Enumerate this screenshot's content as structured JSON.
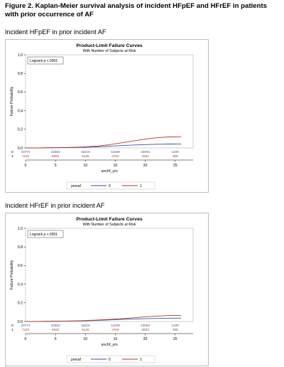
{
  "figure_title": "Figure 2. Kaplan-Meier survival analysis of incident HFpEF and HFrEF in patients with prior occurrence of AF",
  "colors": {
    "group0": "#3b4fa0",
    "group1": "#b5382b",
    "axis": "#000000",
    "frame": "#bfbfbf"
  },
  "chart_data": [
    {
      "section_title": "Incident HFpEF in prior incident AF",
      "type": "line",
      "title": "Product-Limit Failure Curves",
      "subtitle": "With Number of Subjects at Risk",
      "xlabel": "unchf_yrs",
      "ylabel": "Failure Probability",
      "xlim": [
        0,
        28
      ],
      "ylim": [
        0,
        1.0
      ],
      "xticks": [
        0,
        5,
        10,
        15,
        20,
        25
      ],
      "yticks": [
        0.0,
        0.2,
        0.4,
        0.6,
        0.8,
        1.0
      ],
      "ytick_labels": [
        "0.0",
        "0.2",
        "0.4",
        "0.6",
        "0.8",
        "1.0"
      ],
      "annotation": "Logrank p <.0001",
      "grid": false,
      "legend_title": "prevaf",
      "legend_position": "bottom",
      "series": [
        {
          "name": "0",
          "color": "#3b4fa0",
          "x": [
            0,
            2,
            4,
            6,
            8,
            10,
            12,
            14,
            16,
            18,
            20,
            22,
            24,
            26
          ],
          "y": [
            0,
            0.001,
            0.002,
            0.003,
            0.005,
            0.008,
            0.012,
            0.018,
            0.025,
            0.031,
            0.036,
            0.04,
            0.042,
            0.043
          ]
        },
        {
          "name": "1",
          "color": "#b5382b",
          "x": [
            0,
            2,
            4,
            6,
            8,
            10,
            12,
            14,
            16,
            18,
            20,
            22,
            24,
            26
          ],
          "y": [
            0,
            0.001,
            0.002,
            0.004,
            0.007,
            0.012,
            0.02,
            0.035,
            0.055,
            0.075,
            0.095,
            0.11,
            0.118,
            0.12
          ]
        }
      ],
      "at_risk": {
        "groups": [
          {
            "label": "0",
            "color": "#3b4fa0",
            "x": [
              0,
              5,
              10,
              15,
              20,
              25
            ],
            "values": [
              "23774",
              "22553",
              "16216",
              "12408",
              "10004",
              "1200"
            ]
          },
          {
            "label": "1",
            "color": "#b5382b",
            "x": [
              0,
              5,
              10,
              15,
              20,
              25
            ],
            "values": [
              "7223",
              "6932",
              "5146",
              "3700",
              "2853",
              "398"
            ]
          }
        ]
      }
    },
    {
      "section_title": "Incident HFrEF in prior incident AF",
      "type": "line",
      "title": "Product-Limit Failure Curves",
      "subtitle": "With Number of Subjects at Risk",
      "xlabel": "unchf_yrs",
      "ylabel": "Failure Probability",
      "xlim": [
        0,
        28
      ],
      "ylim": [
        0,
        1.0
      ],
      "xticks": [
        0,
        5,
        10,
        15,
        20,
        25
      ],
      "yticks": [
        0.0,
        0.2,
        0.4,
        0.6,
        0.8,
        1.0
      ],
      "ytick_labels": [
        "0.0",
        "0.2",
        "0.4",
        "0.6",
        "0.8",
        "1.0"
      ],
      "annotation": "Logrank p <.0001",
      "grid": false,
      "legend_title": "prevaf",
      "legend_position": "bottom",
      "series": [
        {
          "name": "0",
          "color": "#3b4fa0",
          "x": [
            0,
            2,
            4,
            6,
            8,
            10,
            12,
            14,
            16,
            18,
            20,
            22,
            24,
            26
          ],
          "y": [
            0,
            0.001,
            0.002,
            0.003,
            0.005,
            0.008,
            0.012,
            0.017,
            0.022,
            0.026,
            0.03,
            0.033,
            0.035,
            0.036
          ]
        },
        {
          "name": "1",
          "color": "#b5382b",
          "x": [
            0,
            2,
            4,
            6,
            8,
            10,
            12,
            14,
            16,
            18,
            20,
            22,
            24,
            26
          ],
          "y": [
            0,
            0.001,
            0.002,
            0.003,
            0.006,
            0.01,
            0.015,
            0.022,
            0.03,
            0.04,
            0.05,
            0.058,
            0.064,
            0.066
          ]
        }
      ],
      "at_risk": {
        "groups": [
          {
            "label": "0",
            "color": "#3b4fa0",
            "x": [
              0,
              5,
              10,
              15,
              20,
              25
            ],
            "values": [
              "23774",
              "22553",
              "16216",
              "12408",
              "10004",
              "1200"
            ]
          },
          {
            "label": "1",
            "color": "#b5382b",
            "x": [
              0,
              5,
              10,
              15,
              20,
              25
            ],
            "values": [
              "7223",
              "6932",
              "5146",
              "3700",
              "2853",
              "398"
            ]
          }
        ]
      }
    }
  ]
}
